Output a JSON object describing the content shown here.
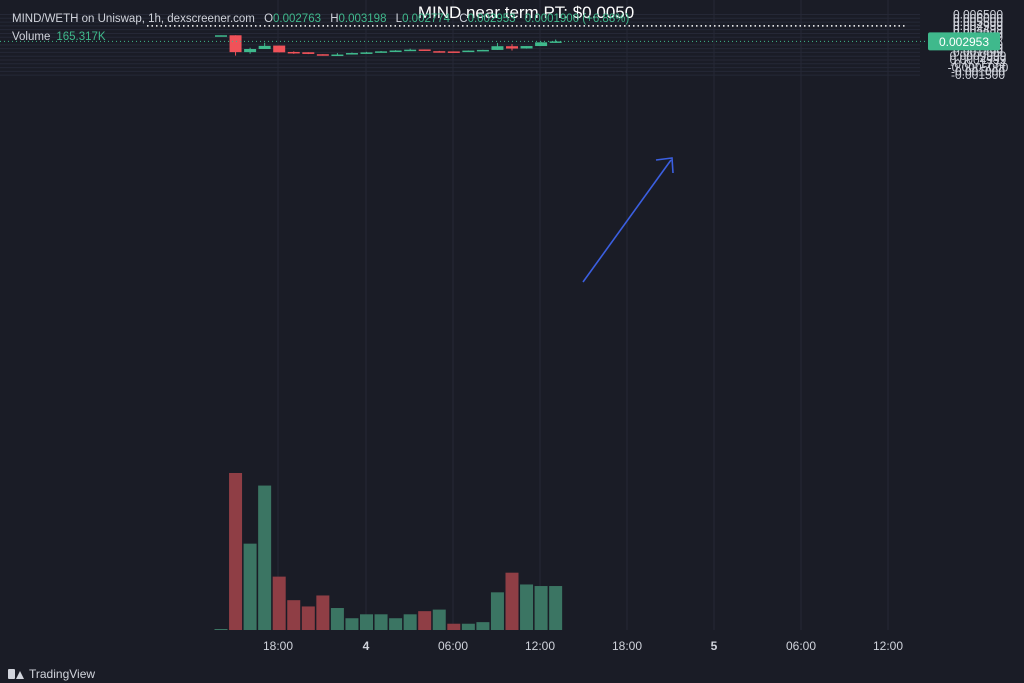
{
  "legend": {
    "symbol": "MIND/WETH on Uniswap, 1h, dexscreener.com",
    "o_label": "O",
    "o_value": "0.002763",
    "h_label": "H",
    "h_value": "0.003198",
    "l_label": "L",
    "l_value": "0.002774",
    "c_label": "C",
    "c_value": "0.002953",
    "change": "0.0001900 (+6.88%)",
    "volume_label": "Volume",
    "volume_value": "165.317K"
  },
  "chart_data": {
    "type": "candlestick",
    "y_axis_ticks": [
      "0.006500",
      "0.006000",
      "0.005500",
      "0.004999",
      "0.004499",
      "0.003999",
      "0.003499",
      "0.002499",
      "0.001999",
      "0.001499",
      "0.0009999",
      "0.0004999",
      "-0.0₁₇1734",
      "-0.0005000",
      "-0.001000",
      "-0.001500"
    ],
    "y_axis_tick_values": [
      0.0065,
      0.006,
      0.0055,
      0.004999,
      0.004499,
      0.003999,
      0.003499,
      0.002499,
      0.001999,
      0.001499,
      0.0009999,
      0.0004999,
      -1.734e-19,
      -0.0005,
      -0.001,
      -0.0015
    ],
    "x_axis_ticks": [
      "18:00",
      "4",
      "06:00",
      "12:00",
      "18:00",
      "5",
      "06:00",
      "12:00"
    ],
    "x_axis_bold": [
      false,
      true,
      false,
      false,
      false,
      true,
      false,
      false
    ],
    "price_range": [
      -0.00155,
      0.0066
    ],
    "current_price": 0.002953,
    "current_price_label": "0.002953",
    "annotation": {
      "text": "MIND near term PT: $0.0050",
      "price": 0.004999
    },
    "candles": [
      {
        "t": 0,
        "o": 0.00376,
        "h": 0.00376,
        "l": 0.00375,
        "c": 0.00376
      },
      {
        "t": 1,
        "o": 0.00376,
        "h": 0.00376,
        "l": 0.00108,
        "c": 0.00154
      },
      {
        "t": 2,
        "o": 0.00154,
        "h": 0.00212,
        "l": 0.00133,
        "c": 0.00195
      },
      {
        "t": 3,
        "o": 0.00195,
        "h": 0.00278,
        "l": 0.00195,
        "c": 0.00236
      },
      {
        "t": 4,
        "o": 0.0024,
        "h": 0.0024,
        "l": 0.00151,
        "c": 0.00151
      },
      {
        "t": 5,
        "o": 0.00156,
        "h": 0.00164,
        "l": 0.00131,
        "c": 0.0015
      },
      {
        "t": 6,
        "o": 0.00152,
        "h": 0.00152,
        "l": 0.00128,
        "c": 0.0013
      },
      {
        "t": 7,
        "o": 0.00126,
        "h": 0.00126,
        "l": 0.00108,
        "c": 0.00113
      },
      {
        "t": 8,
        "o": 0.00114,
        "h": 0.00141,
        "l": 0.00114,
        "c": 0.00122
      },
      {
        "t": 9,
        "o": 0.00122,
        "h": 0.00148,
        "l": 0.00122,
        "c": 0.00142
      },
      {
        "t": 10,
        "o": 0.00142,
        "h": 0.00157,
        "l": 0.00142,
        "c": 0.0015
      },
      {
        "t": 11,
        "o": 0.0015,
        "h": 0.00169,
        "l": 0.0015,
        "c": 0.00164
      },
      {
        "t": 12,
        "o": 0.00164,
        "h": 0.0018,
        "l": 0.00162,
        "c": 0.00175
      },
      {
        "t": 13,
        "o": 0.00175,
        "h": 0.00199,
        "l": 0.00174,
        "c": 0.00186
      },
      {
        "t": 14,
        "o": 0.00189,
        "h": 0.00189,
        "l": 0.0017,
        "c": 0.0017
      },
      {
        "t": 15,
        "o": 0.00166,
        "h": 0.0017,
        "l": 0.00159,
        "c": 0.00163
      },
      {
        "t": 16,
        "o": 0.00163,
        "h": 0.00163,
        "l": 0.00155,
        "c": 0.00157
      },
      {
        "t": 17,
        "o": 0.00157,
        "h": 0.00176,
        "l": 0.00157,
        "c": 0.00174
      },
      {
        "t": 18,
        "o": 0.00174,
        "h": 0.00184,
        "l": 0.00172,
        "c": 0.00183
      },
      {
        "t": 19,
        "o": 0.00183,
        "h": 0.00275,
        "l": 0.00183,
        "c": 0.00232
      },
      {
        "t": 20,
        "o": 0.00232,
        "h": 0.0026,
        "l": 0.00175,
        "c": 0.00201
      },
      {
        "t": 21,
        "o": 0.00202,
        "h": 0.00234,
        "l": 0.002,
        "c": 0.00234
      },
      {
        "t": 22,
        "o": 0.00234,
        "h": 0.0029,
        "l": 0.00234,
        "c": 0.00283
      },
      {
        "t": 23,
        "o": 0.00276,
        "h": 0.0032,
        "l": 0.00277,
        "c": 0.00295
      }
    ],
    "volumes": [
      0.0,
      0.1,
      0.055,
      0.092,
      0.034,
      0.019,
      0.015,
      0.022,
      0.014,
      0.0075,
      0.01,
      0.01,
      0.0075,
      0.01,
      0.012,
      0.013,
      0.004,
      0.004,
      0.005,
      0.024,
      0.0365,
      0.029,
      0.028,
      0.028
    ],
    "volume_colors": [
      "up",
      "down",
      "up",
      "up",
      "down",
      "down",
      "down",
      "down",
      "up",
      "up",
      "up",
      "up",
      "up",
      "up",
      "down",
      "up",
      "down",
      "up",
      "up",
      "up",
      "down",
      "up",
      "up",
      "up"
    ]
  },
  "colors": {
    "background": "#1a1c26",
    "up": "#3fb98c",
    "down": "#f05259",
    "up_volume": "#3b7563",
    "down_volume": "#8f3e45",
    "grid": "#252836",
    "axis_text": "#d1d4dc",
    "arrow": "#3b5fe0"
  },
  "branding": "TradingView"
}
